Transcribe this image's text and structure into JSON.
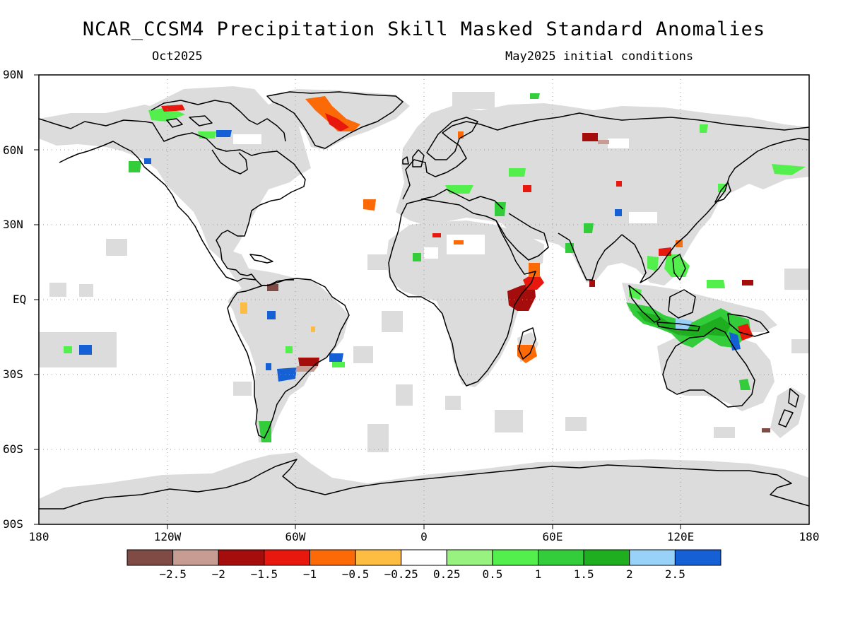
{
  "title": "NCAR_CCSM4 Precipitation Skill Masked Standard Anomalies",
  "valid_month": "Oct2025",
  "initial_conditions": "May2025 initial conditions",
  "axes": {
    "lat_labels": [
      "90N",
      "60N",
      "30N",
      "EQ",
      "30S",
      "60S",
      "90S"
    ],
    "lon_labels": [
      "180",
      "120W",
      "60W",
      "0",
      "60E",
      "120E",
      "180"
    ]
  },
  "colorbar": {
    "colors": [
      "#7f4b44",
      "#c79c93",
      "#a50d0d",
      "#e8180e",
      "#fb6a07",
      "#fdbd43",
      "#ffffff",
      "#98f27f",
      "#52ef4d",
      "#33cc3a",
      "#1fae1f",
      "#99d2f9",
      "#1660d6"
    ],
    "labels": [
      "−2.5",
      "−2",
      "−1.5",
      "−1",
      "−0.5",
      "−0.25",
      "0.25",
      "0.5",
      "1",
      "1.5",
      "2",
      "2.5"
    ]
  },
  "map_colors": {
    "land": "#ffffff",
    "mask": "#dcdcdc",
    "coast": "#000000"
  }
}
